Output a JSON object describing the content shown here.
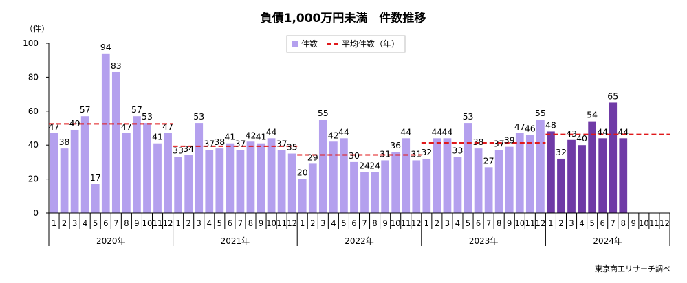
{
  "chart_data": {
    "type": "bar",
    "title": "負債1,000万円未満　件数推移",
    "ylabel": "（件）",
    "ylim": [
      0,
      100
    ],
    "yticks": [
      0,
      20,
      40,
      60,
      80,
      100
    ],
    "legend": {
      "placement": "top-center",
      "bar_label": "件数",
      "avg_label": "平均件数（年）"
    },
    "source": "東京商工リサーチ調べ",
    "months": [
      "1",
      "2",
      "3",
      "4",
      "5",
      "6",
      "7",
      "8",
      "9",
      "10",
      "11",
      "12"
    ],
    "years": [
      {
        "label": "2020年",
        "values": [
          47,
          38,
          49,
          57,
          17,
          94,
          83,
          47,
          57,
          53,
          41,
          47
        ],
        "average": 52.5
      },
      {
        "label": "2021年",
        "values": [
          33,
          34,
          53,
          37,
          38,
          41,
          37,
          42,
          41,
          44,
          37,
          35
        ],
        "average": 39.3
      },
      {
        "label": "2022年",
        "values": [
          20,
          29,
          55,
          42,
          44,
          30,
          24,
          24,
          31,
          36,
          44,
          31
        ],
        "average": 34.2
      },
      {
        "label": "2023年",
        "values": [
          32,
          44,
          44,
          33,
          53,
          38,
          27,
          37,
          39,
          47,
          46,
          55
        ],
        "average": 41.3
      },
      {
        "label": "2024年",
        "values": [
          48,
          32,
          43,
          40,
          54,
          44,
          65,
          44
        ],
        "average": 46.3
      }
    ],
    "colors": {
      "bar": "#b4a0ee",
      "bar_highlight": "#6f3aa6",
      "average_line": "#e0191b",
      "axis": "#000000"
    }
  }
}
